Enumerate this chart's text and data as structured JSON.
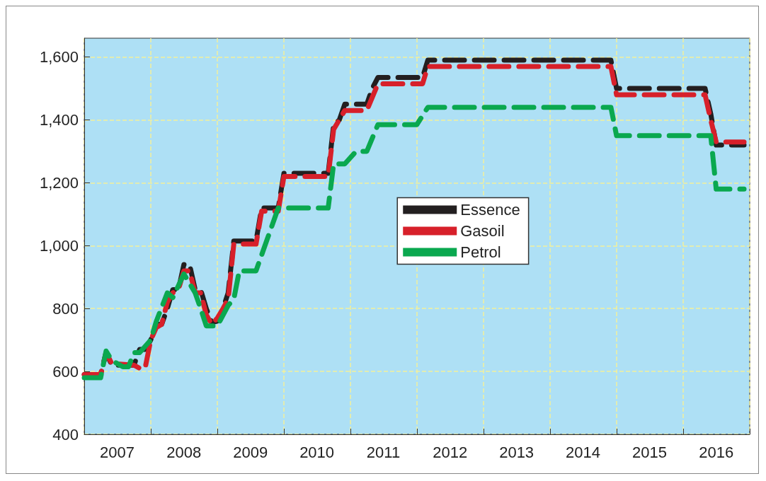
{
  "chart_data": {
    "type": "line",
    "line_style": "dashed",
    "marker": "none",
    "grid": true,
    "legend": "center",
    "xlim": [
      "2007-01",
      "2017-01"
    ],
    "xticks": [
      {
        "value": "2007",
        "label": null
      },
      {
        "value": "2008",
        "label": null
      },
      {
        "value": "2009",
        "label": null
      },
      {
        "value": "2010",
        "label": null
      },
      {
        "value": "2011",
        "label": null
      },
      {
        "value": "2012",
        "label": null
      },
      {
        "value": "2013",
        "label": null
      },
      {
        "value": "2014",
        "label": null
      },
      {
        "value": "2015",
        "label": null
      },
      {
        "value": "2016",
        "label": null
      },
      {
        "value": "2017",
        "label": null
      },
      {
        "value": "2007-07",
        "label": "2007"
      },
      {
        "value": "2008-07",
        "label": "2008"
      },
      {
        "value": "2009-07",
        "label": "2009"
      },
      {
        "value": "2010-07",
        "label": "2010"
      },
      {
        "value": "2011-07",
        "label": "2011"
      },
      {
        "value": "2012-07",
        "label": "2012"
      },
      {
        "value": "2013-07",
        "label": "2013"
      },
      {
        "value": "2014-07",
        "label": "2014"
      },
      {
        "value": "2015-07",
        "label": "2015"
      },
      {
        "value": "2016-07",
        "label": "2016"
      }
    ],
    "ylim": [
      400,
      1660
    ],
    "yticks": [
      400,
      600,
      800,
      {
        "value": 1000,
        "label": "1,000"
      },
      {
        "value": 1200,
        "label": "1,200"
      },
      {
        "value": 1400,
        "label": "1,400"
      },
      {
        "value": 1600,
        "label": "1,600"
      }
    ],
    "series": [
      {
        "name": "Essence",
        "color": "#231f20",
        "x": [
          "2007-01",
          "2007-04",
          "2007-05",
          "2007-06",
          "2007-10",
          "2007-11",
          "2007-12",
          "2008-01",
          "2008-02",
          "2008-03",
          "2008-04",
          "2008-05",
          "2008-06",
          "2008-07",
          "2008-08",
          "2008-09",
          "2008-10",
          "2008-11",
          "2008-12",
          "2009-01",
          "2009-02",
          "2009-03",
          "2009-04",
          "2009-08",
          "2009-09",
          "2009-12",
          "2010-01",
          "2010-09",
          "2010-10",
          "2010-11",
          "2010-12",
          "2011-04",
          "2011-05",
          "2011-06",
          "2012-02",
          "2012-03",
          "2014-12",
          "2015-01",
          "2016-05",
          "2016-06",
          "2016-07",
          "2016-12"
        ],
        "values": [
          590,
          590,
          660,
          620,
          620,
          670,
          670,
          700,
          750,
          750,
          800,
          860,
          860,
          940,
          940,
          860,
          860,
          800,
          755,
          760,
          800,
          850,
          1015,
          1015,
          1120,
          1120,
          1230,
          1230,
          1385,
          1400,
          1450,
          1450,
          1500,
          1535,
          1535,
          1590,
          1590,
          1500,
          1500,
          1420,
          1320,
          1320
        ]
      },
      {
        "name": "Gasoil",
        "color": "#d7202a",
        "x": [
          "2007-01",
          "2007-04",
          "2007-05",
          "2007-06",
          "2007-10",
          "2007-11",
          "2007-12",
          "2008-01",
          "2008-02",
          "2008-03",
          "2008-04",
          "2008-05",
          "2008-06",
          "2008-07",
          "2008-08",
          "2008-09",
          "2008-10",
          "2008-11",
          "2008-12",
          "2009-01",
          "2009-02",
          "2009-03",
          "2009-04",
          "2009-08",
          "2009-09",
          "2009-12",
          "2010-01",
          "2010-09",
          "2010-10",
          "2010-12",
          "2011-04",
          "2011-06",
          "2012-02",
          "2012-03",
          "2014-12",
          "2015-01",
          "2016-05",
          "2016-06",
          "2016-07",
          "2016-12"
        ],
        "values": [
          590,
          590,
          660,
          625,
          620,
          610,
          610,
          700,
          740,
          750,
          820,
          850,
          860,
          920,
          920,
          850,
          850,
          780,
          750,
          770,
          800,
          830,
          1005,
          1005,
          1110,
          1110,
          1220,
          1220,
          1370,
          1430,
          1430,
          1515,
          1515,
          1570,
          1570,
          1480,
          1480,
          1400,
          1330,
          1330
        ]
      },
      {
        "name": "Petrol",
        "color": "#0aa84f",
        "x": [
          "2007-01",
          "2007-04",
          "2007-05",
          "2007-06",
          "2007-08",
          "2007-09",
          "2007-10",
          "2007-11",
          "2008-01",
          "2008-02",
          "2008-04",
          "2008-05",
          "2008-07",
          "2008-08",
          "2008-09",
          "2008-10",
          "2008-11",
          "2009-01",
          "2009-03",
          "2009-04",
          "2009-05",
          "2009-08",
          "2009-10",
          "2009-12",
          "2010-09",
          "2010-10",
          "2010-12",
          "2011-02",
          "2011-04",
          "2011-06",
          "2012-01",
          "2012-03",
          "2014-12",
          "2015-01",
          "2016-06",
          "2016-07",
          "2016-12"
        ],
        "values": [
          580,
          580,
          665,
          635,
          615,
          615,
          660,
          660,
          700,
          760,
          850,
          835,
          910,
          880,
          850,
          800,
          745,
          745,
          810,
          830,
          920,
          920,
          1020,
          1120,
          1120,
          1260,
          1260,
          1300,
          1300,
          1385,
          1385,
          1440,
          1440,
          1350,
          1350,
          1180,
          1180
        ]
      }
    ]
  }
}
